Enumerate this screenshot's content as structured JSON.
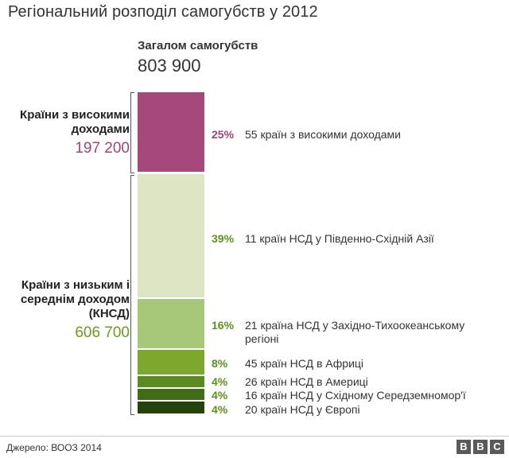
{
  "title": "Регіональний розподіл самогубств у 2012",
  "total": {
    "label": "Загалом самогубств",
    "value": "803 900"
  },
  "groups": [
    {
      "label_line1": "Країни з високими",
      "label_line2": "доходами",
      "value": "197 200",
      "color": "#9e4373"
    },
    {
      "label_line1": "Країни з низьким і",
      "label_line2": "середнім доходом",
      "label_line3": "(КНСД)",
      "value": "606 700",
      "color": "#6a9a1e"
    }
  ],
  "chart_data": {
    "type": "bar",
    "title": "Регіональний розподіл самогубств у 2012",
    "total": 803900,
    "series": [
      {
        "pct": "25%",
        "value": 25,
        "label": "55 країн з високими доходами",
        "color": "#a5487a",
        "pct_color": "#9e4373"
      },
      {
        "pct": "39%",
        "value": 39,
        "label": "11 країн НСД у Південно-Східній Азії",
        "color": "#dce6c5",
        "pct_color": "#5f8f1c"
      },
      {
        "pct": "16%",
        "value": 16,
        "label_line1": "21 країна НСД у Західно-Тихоокеанському",
        "label_line2": "регіоні",
        "color": "#a9c778",
        "pct_color": "#5f8f1c"
      },
      {
        "pct": "8%",
        "value": 8,
        "label": "45 країн НСД в Африці",
        "color": "#7ba82e",
        "pct_color": "#5f8f1c"
      },
      {
        "pct": "4%",
        "value": 4,
        "label": "26 країн НСД в Америці",
        "color": "#5a8a20",
        "pct_color": "#5f8f1c"
      },
      {
        "pct": "4%",
        "value": 4,
        "label": "16 країн НСД у Східному Середземномор'ї",
        "color": "#3f6d15",
        "pct_color": "#5f8f1c"
      },
      {
        "pct": "4%",
        "value": 4,
        "label": "20 країн НСД у Європі",
        "color": "#26420c",
        "pct_color": "#5f8f1c"
      }
    ]
  },
  "footer": {
    "source": "Джерело: ВООЗ 2014",
    "logo": [
      "B",
      "B",
      "C"
    ]
  }
}
